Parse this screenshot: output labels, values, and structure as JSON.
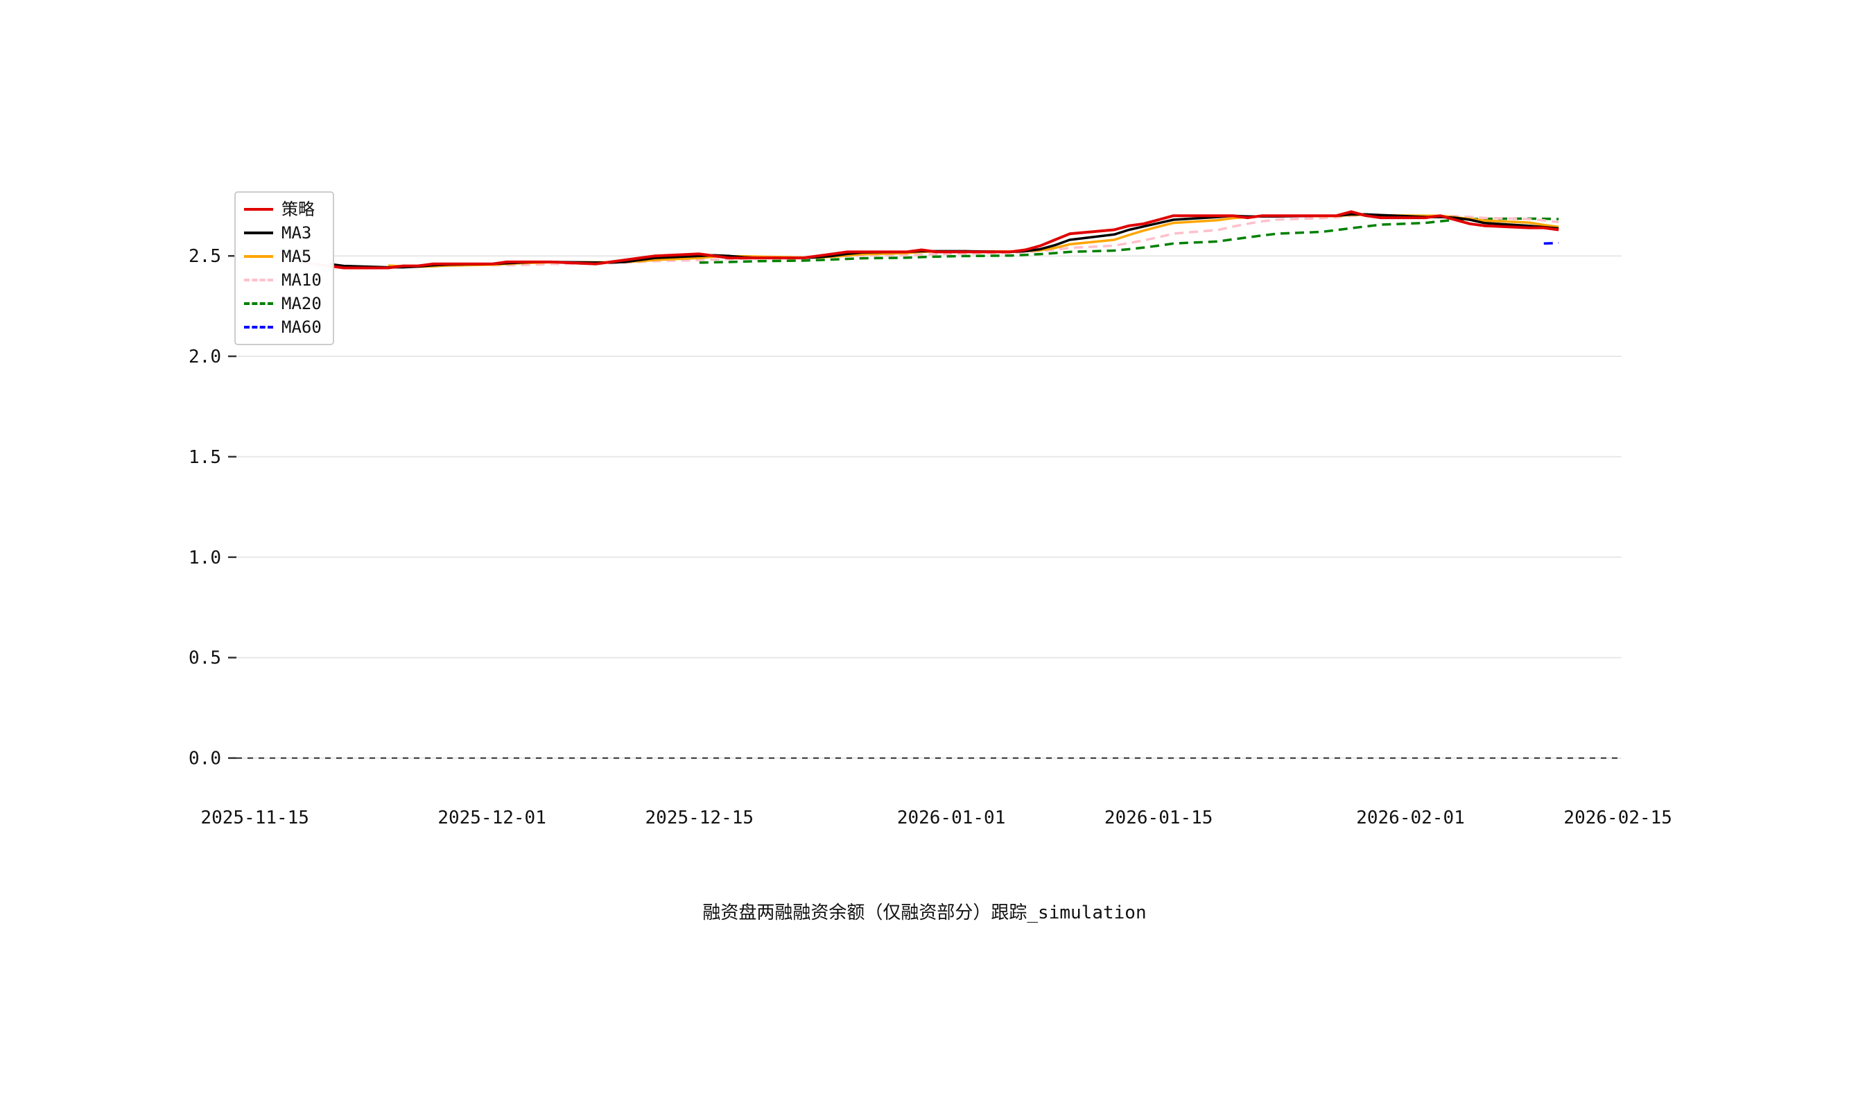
{
  "title": "融资盘两融融资余额（仅融资部分）跟踪_simulation",
  "chart_data": {
    "type": "line",
    "title": "融资盘两融融资余额（仅融资部分）跟踪_simulation",
    "xlabel": "",
    "ylabel": "",
    "grid": "horizontal",
    "legend_position": "upper-left",
    "zero_line": true,
    "ylim": [
      -0.136,
      2.856
    ],
    "yticks": {
      "values": [
        0,
        0.5,
        1.0,
        1.5,
        2.0,
        2.5
      ],
      "labels": [
        "0.0",
        "0.5",
        "1.0",
        "1.5",
        "2.0",
        "2.5"
      ]
    },
    "xticks": {
      "dates": [
        "2025-11-15",
        "2025-12-01",
        "2025-12-15",
        "2026-01-01",
        "2026-01-15",
        "2026-02-01",
        "2026-02-15"
      ],
      "labels": [
        "2025-11-15",
        "2025-12-01",
        "2025-12-15",
        "2026-01-01",
        "2026-01-15",
        "2026-02-01",
        "2026-02-15"
      ]
    },
    "dates": [
      "2025-11-18",
      "2025-11-19",
      "2025-11-20",
      "2025-11-21",
      "2025-11-24",
      "2025-11-25",
      "2025-11-26",
      "2025-11-27",
      "2025-11-28",
      "2025-12-01",
      "2025-12-02",
      "2025-12-03",
      "2025-12-04",
      "2025-12-05",
      "2025-12-08",
      "2025-12-09",
      "2025-12-10",
      "2025-12-11",
      "2025-12-12",
      "2025-12-15",
      "2025-12-16",
      "2025-12-17",
      "2025-12-18",
      "2025-12-19",
      "2025-12-22",
      "2025-12-23",
      "2025-12-24",
      "2025-12-25",
      "2025-12-26",
      "2025-12-29",
      "2025-12-30",
      "2025-12-31",
      "2026-01-02",
      "2026-01-05",
      "2026-01-06",
      "2026-01-07",
      "2026-01-08",
      "2026-01-09",
      "2026-01-12",
      "2026-01-13",
      "2026-01-14",
      "2026-01-15",
      "2026-01-16",
      "2026-01-19",
      "2026-01-20",
      "2026-01-21",
      "2026-01-22",
      "2026-01-23",
      "2026-01-26",
      "2026-01-27",
      "2026-01-28",
      "2026-01-29",
      "2026-01-30",
      "2026-02-02",
      "2026-02-03",
      "2026-02-04",
      "2026-02-05",
      "2026-02-06",
      "2026-02-09",
      "2026-02-10",
      "2026-02-11"
    ],
    "series": [
      {
        "name": "策略",
        "color": "#e00000",
        "style": "solid",
        "values": [
          2.47,
          2.46,
          2.45,
          2.44,
          2.44,
          2.45,
          2.45,
          2.46,
          2.46,
          2.46,
          2.47,
          2.47,
          2.47,
          2.47,
          2.46,
          2.47,
          2.48,
          2.49,
          2.5,
          2.51,
          2.5,
          2.49,
          2.49,
          2.49,
          2.49,
          2.5,
          2.51,
          2.52,
          2.52,
          2.52,
          2.53,
          2.52,
          2.52,
          2.52,
          2.53,
          2.55,
          2.58,
          2.61,
          2.63,
          2.65,
          2.66,
          2.68,
          2.7,
          2.7,
          2.7,
          2.69,
          2.7,
          2.7,
          2.7,
          2.7,
          2.72,
          2.7,
          2.69,
          2.69,
          2.7,
          2.68,
          2.66,
          2.65,
          2.64,
          2.64,
          2.63
        ]
      },
      {
        "name": "MA3",
        "color": "#000000",
        "style": "solid",
        "window": 3
      },
      {
        "name": "MA5",
        "color": "#ffa500",
        "style": "solid",
        "window": 5
      },
      {
        "name": "MA10",
        "color": "#ffc0cb",
        "style": "dashed",
        "window": 10
      },
      {
        "name": "MA20",
        "color": "#008000",
        "style": "dashed",
        "window": 20
      },
      {
        "name": "MA60",
        "color": "#0000ff",
        "style": "dashed",
        "window": 60
      }
    ]
  }
}
